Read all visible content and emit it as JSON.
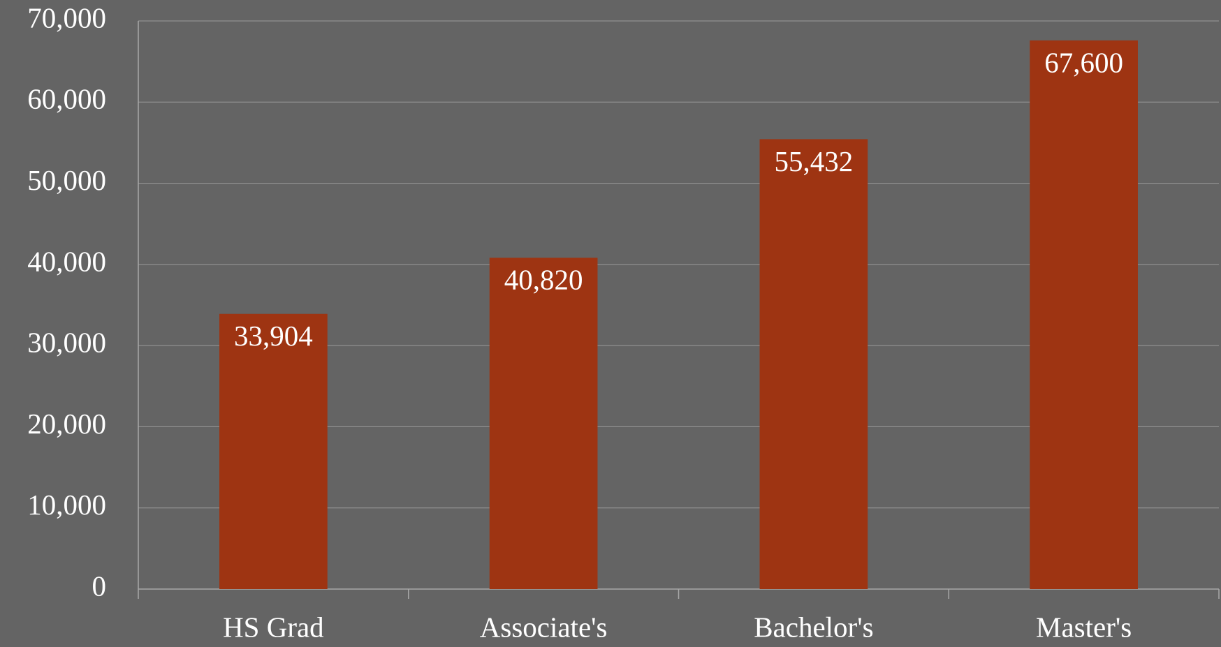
{
  "chart_data": {
    "type": "bar",
    "categories": [
      "HS Grad",
      "Associate's",
      "Bachelor's",
      "Master's"
    ],
    "values": [
      33904,
      40820,
      55432,
      67600
    ],
    "value_labels": [
      "33,904",
      "40,820",
      "55,432",
      "67,600"
    ],
    "color": "#9e3412",
    "ylim": [
      0,
      70000
    ],
    "yticks": [
      0,
      {
        "value": 10000,
        "label": "10,000"
      },
      {
        "value": 20000,
        "label": "20,000"
      },
      {
        "value": 30000,
        "label": "30,000"
      },
      {
        "value": 40000,
        "label": "40,000"
      },
      {
        "value": 50000,
        "label": "50,000"
      },
      {
        "value": 60000,
        "label": "60,000"
      },
      {
        "value": 70000,
        "label": "70,000"
      }
    ],
    "grid": true
  }
}
